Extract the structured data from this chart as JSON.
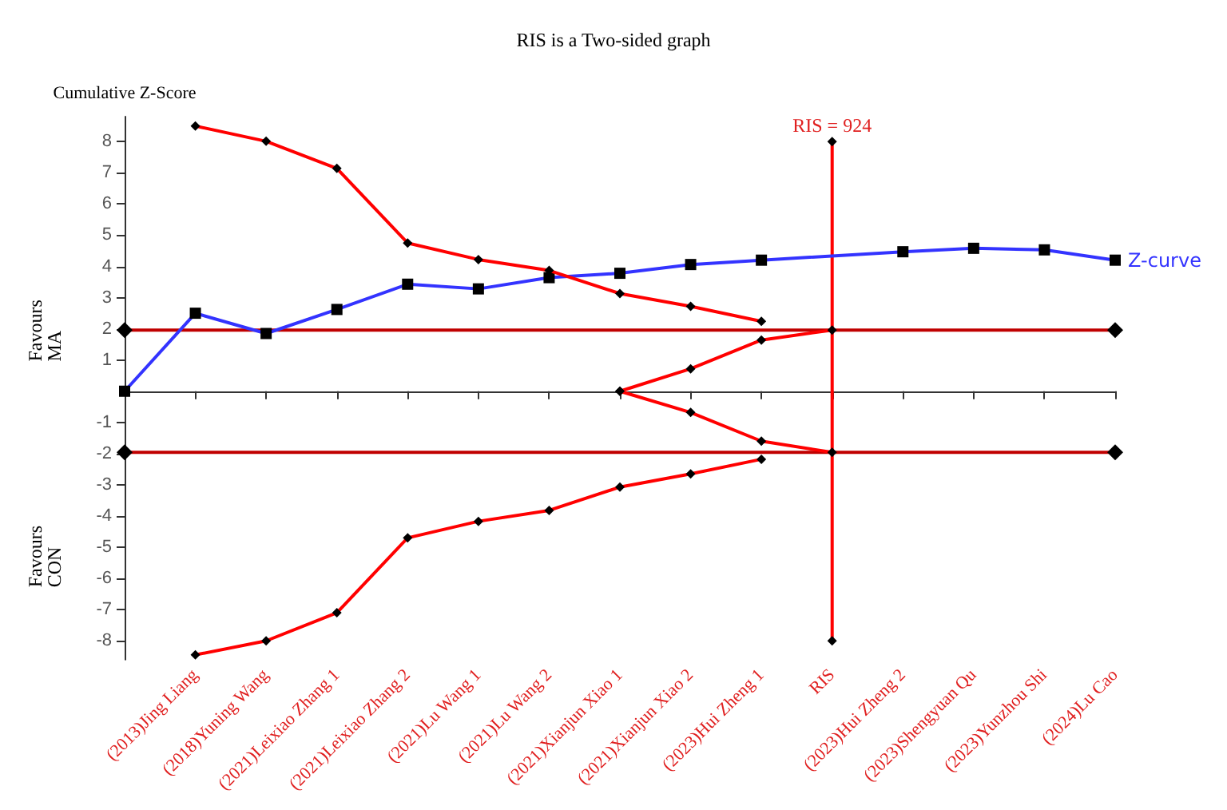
{
  "chart_data": {
    "type": "line",
    "title": "RIS is a Two-sided graph",
    "ylabel": "Cumulative Z-Score",
    "categories": [
      null,
      "(2013)Jing Liang",
      "(2018)Yuning Wang",
      "(2021)Leixiao Zhang 1",
      "(2021)Leixiao Zhang 2",
      "(2021)Lu Wang 1",
      "(2021)Lu Wang 2",
      "(2021)Xianjun Xiao 1",
      "(2021)Xianjun Xiao 2",
      "(2023)Hui Zheng 1",
      "RIS",
      "(2023)Hui Zheng 2",
      "(2023)Shengyuan Qu",
      "(2023)Yunzhou Shi",
      "(2024)Lu Cao"
    ],
    "series": [
      {
        "name": "Z-curve",
        "color": "#3333ff",
        "marker": "square",
        "values": [
          0,
          2.5,
          1.85,
          2.62,
          3.43,
          3.28,
          3.64,
          3.78,
          4.06,
          4.2,
          null,
          4.47,
          4.58,
          4.53,
          4.2
        ]
      },
      {
        "color": "#ff0000",
        "marker": "diamond",
        "values": [
          null,
          8.5,
          8.01,
          7.14,
          4.75,
          4.22,
          3.87,
          3.13,
          2.72,
          2.24,
          null,
          null,
          null,
          null,
          null
        ]
      },
      {
        "color": "#ff0000",
        "marker": "diamond",
        "values": [
          null,
          -8.45,
          -8.0,
          -7.1,
          -4.7,
          -4.17,
          -3.82,
          -3.07,
          -2.65,
          -2.18,
          null,
          null,
          null,
          null,
          null
        ]
      },
      {
        "color": "#ff0000",
        "marker": "diamond",
        "values": [
          null,
          null,
          null,
          null,
          null,
          null,
          null,
          0,
          0.72,
          1.64,
          1.96,
          null,
          null,
          null,
          null
        ]
      },
      {
        "color": "#ff0000",
        "marker": "diamond",
        "values": [
          null,
          null,
          null,
          null,
          null,
          null,
          null,
          0,
          -0.68,
          -1.6,
          -1.96,
          null,
          null,
          null,
          null
        ]
      },
      {
        "color": "#ff0000",
        "marker": "diamond",
        "x": [
          "RIS",
          "RIS"
        ],
        "values": [
          8,
          -8
        ]
      },
      {
        "color": "#c00000",
        "marker": "diamond",
        "values": [
          1.96,
          null,
          null,
          null,
          null,
          null,
          null,
          null,
          null,
          null,
          null,
          null,
          null,
          null,
          1.96
        ]
      },
      {
        "color": "#c00000",
        "marker": "diamond",
        "values": [
          -1.96,
          null,
          null,
          null,
          null,
          null,
          null,
          null,
          null,
          null,
          null,
          null,
          null,
          null,
          -1.96
        ]
      }
    ],
    "annotations": [
      "Favours MA",
      "Favours CON",
      {
        "text": "RIS = 924",
        "x": "RIS",
        "y": 8
      }
    ],
    "ylim": [
      -8.6,
      8.8
    ],
    "yticks": [
      -8,
      -7,
      -6,
      -5,
      -4,
      -3,
      -2,
      -1,
      1,
      2,
      3,
      4,
      5,
      6,
      7,
      8
    ],
    "grid": false,
    "legend": false
  }
}
